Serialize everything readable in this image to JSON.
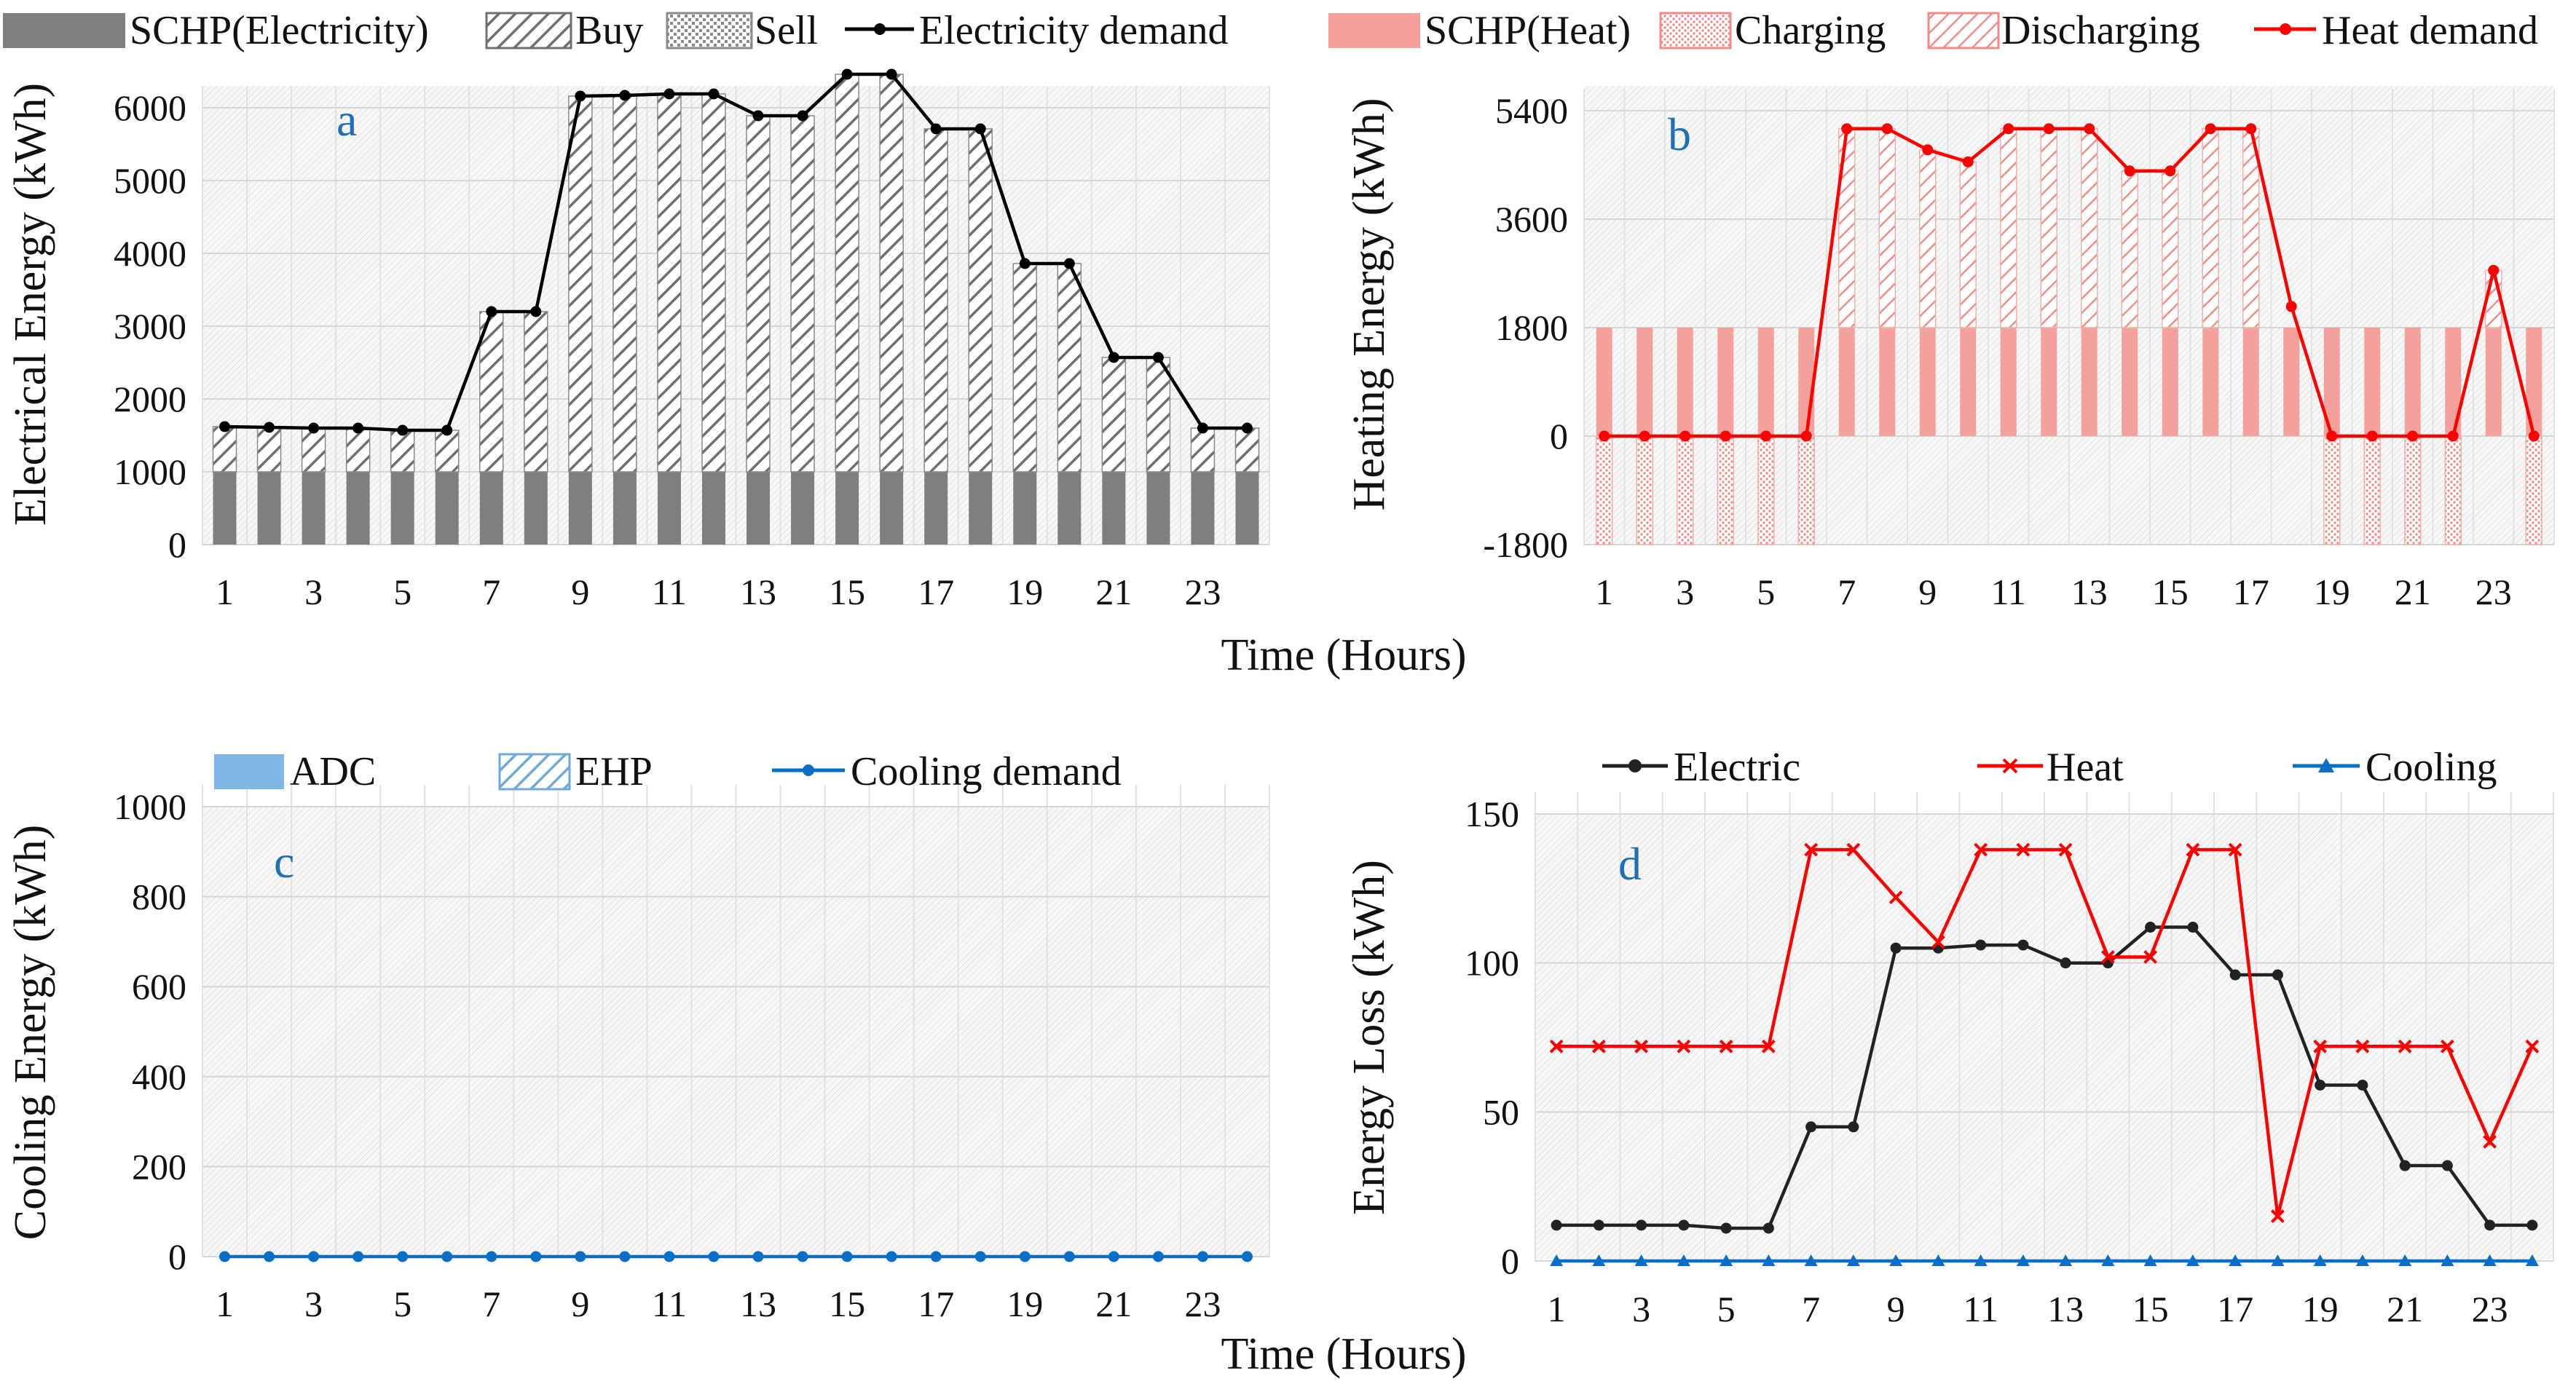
{
  "colors": {
    "schp_electricity": "#7f7f7f",
    "buy_hatch": "#6f6f6f",
    "sell_hatch": "#8a8a8a",
    "electricity_demand": "#000000",
    "schp_heat": "#f4a09c",
    "charge_hatch": "#ef8d88",
    "discharge_hatch": "#ef8d88",
    "heat_demand": "#ff0000",
    "adc": "#7fb6e6",
    "ehp_hatch": "#6fa9dc",
    "cooling_demand": "#0a6ec8",
    "loss_electric": "#222222",
    "loss_heat": "#ff0000",
    "loss_cooling": "#0a6ec8",
    "tag": "#1f6fb5"
  },
  "shared": {
    "xlabel": "Time (Hours)"
  },
  "chart_data": [
    {
      "id": "a",
      "type": "bar",
      "tag": "a",
      "ylabel": "Electrical Energy (kWh)",
      "ylim": [
        0,
        6000
      ],
      "yticks": [
        0,
        1000,
        2000,
        3000,
        4000,
        5000,
        6000
      ],
      "xticks": [
        1,
        3,
        5,
        7,
        9,
        11,
        13,
        15,
        17,
        19,
        21,
        23
      ],
      "legend": [
        "SCHP(Electricity)",
        "Buy",
        "Sell",
        "Electricity demand"
      ],
      "x": [
        1,
        2,
        3,
        4,
        5,
        6,
        7,
        8,
        9,
        10,
        11,
        12,
        13,
        14,
        15,
        16,
        17,
        18,
        19,
        20,
        21,
        22,
        23,
        24
      ],
      "series": [
        {
          "name": "SCHP(Electricity)",
          "kind": "bar",
          "values": [
            1000,
            1000,
            1000,
            1000,
            1000,
            1000,
            1000,
            1000,
            1000,
            1000,
            1000,
            1000,
            1000,
            1000,
            1000,
            1000,
            1000,
            1000,
            1000,
            1000,
            1000,
            1000,
            1000,
            1000
          ]
        },
        {
          "name": "Buy",
          "kind": "bar",
          "values": [
            620,
            610,
            600,
            600,
            570,
            570,
            2200,
            2200,
            5160,
            5170,
            5190,
            5190,
            4890,
            4890,
            5460,
            5460,
            4710,
            4710,
            2860,
            2860,
            1570,
            1570,
            600,
            600
          ]
        },
        {
          "name": "Sell",
          "kind": "bar",
          "values": [
            0,
            0,
            0,
            0,
            0,
            0,
            0,
            0,
            0,
            0,
            0,
            0,
            0,
            0,
            0,
            0,
            0,
            0,
            0,
            0,
            0,
            0,
            0,
            0
          ]
        },
        {
          "name": "Electricity demand",
          "kind": "line",
          "values": [
            1620,
            1610,
            1600,
            1600,
            1570,
            1570,
            3200,
            3200,
            6160,
            6170,
            6190,
            6190,
            5890,
            5890,
            6460,
            6460,
            5710,
            5710,
            3860,
            3860,
            2570,
            2570,
            1600,
            1600
          ]
        }
      ]
    },
    {
      "id": "b",
      "type": "bar",
      "tag": "b",
      "ylabel": "Heating Energy (kWh)",
      "ylim": [
        -1800,
        5400
      ],
      "yticks": [
        -1800,
        0,
        1800,
        3600,
        5400
      ],
      "xticks": [
        1,
        3,
        5,
        7,
        9,
        11,
        13,
        15,
        17,
        19,
        21,
        23
      ],
      "legend": [
        "SCHP(Heat)",
        "Charging",
        "Discharging",
        "Heat demand"
      ],
      "x": [
        1,
        2,
        3,
        4,
        5,
        6,
        7,
        8,
        9,
        10,
        11,
        12,
        13,
        14,
        15,
        16,
        17,
        18,
        19,
        20,
        21,
        22,
        23,
        24
      ],
      "series": [
        {
          "name": "SCHP(Heat)",
          "kind": "bar",
          "values": [
            1800,
            1800,
            1800,
            1800,
            1800,
            1800,
            1800,
            1800,
            1800,
            1800,
            1800,
            1800,
            1800,
            1800,
            1800,
            1800,
            1800,
            1800,
            1800,
            1800,
            1800,
            1800,
            1800,
            1800
          ]
        },
        {
          "name": "Charging",
          "kind": "bar",
          "values": [
            -1800,
            -1800,
            -1800,
            -1800,
            -1800,
            -1800,
            0,
            0,
            0,
            0,
            0,
            0,
            0,
            0,
            0,
            0,
            0,
            0,
            -1800,
            -1800,
            -1800,
            -1800,
            0,
            -1800
          ]
        },
        {
          "name": "Discharging",
          "kind": "bar",
          "values": [
            0,
            0,
            0,
            0,
            0,
            0,
            3300,
            3300,
            2950,
            2750,
            3300,
            3300,
            3300,
            2600,
            2600,
            3300,
            3300,
            0,
            0,
            0,
            0,
            0,
            950,
            0
          ]
        },
        {
          "name": "Heat demand",
          "kind": "line",
          "values": [
            0,
            0,
            0,
            0,
            0,
            0,
            5100,
            5100,
            4750,
            4550,
            5100,
            5100,
            5100,
            4400,
            4400,
            5100,
            5100,
            2150,
            0,
            0,
            0,
            0,
            2750,
            0
          ]
        }
      ]
    },
    {
      "id": "c",
      "type": "bar",
      "tag": "c",
      "ylabel": "Cooling Energy (kWh)",
      "ylim": [
        0,
        1000
      ],
      "yticks": [
        0,
        200,
        400,
        600,
        800,
        1000
      ],
      "xticks": [
        1,
        3,
        5,
        7,
        9,
        11,
        13,
        15,
        17,
        19,
        21,
        23
      ],
      "legend": [
        "ADC",
        "EHP",
        "Cooling demand"
      ],
      "x": [
        1,
        2,
        3,
        4,
        5,
        6,
        7,
        8,
        9,
        10,
        11,
        12,
        13,
        14,
        15,
        16,
        17,
        18,
        19,
        20,
        21,
        22,
        23,
        24
      ],
      "series": [
        {
          "name": "ADC",
          "kind": "bar",
          "values": [
            0,
            0,
            0,
            0,
            0,
            0,
            0,
            0,
            0,
            0,
            0,
            0,
            0,
            0,
            0,
            0,
            0,
            0,
            0,
            0,
            0,
            0,
            0,
            0
          ]
        },
        {
          "name": "EHP",
          "kind": "bar",
          "values": [
            0,
            0,
            0,
            0,
            0,
            0,
            0,
            0,
            0,
            0,
            0,
            0,
            0,
            0,
            0,
            0,
            0,
            0,
            0,
            0,
            0,
            0,
            0,
            0
          ]
        },
        {
          "name": "Cooling demand",
          "kind": "line",
          "values": [
            0,
            0,
            0,
            0,
            0,
            0,
            0,
            0,
            0,
            0,
            0,
            0,
            0,
            0,
            0,
            0,
            0,
            0,
            0,
            0,
            0,
            0,
            0,
            0
          ]
        }
      ]
    },
    {
      "id": "d",
      "type": "line",
      "tag": "d",
      "ylabel": "Energy Loss (kWh)",
      "ylim": [
        0,
        150
      ],
      "yticks": [
        0,
        50,
        100,
        150
      ],
      "xticks": [
        1,
        3,
        5,
        7,
        9,
        11,
        13,
        15,
        17,
        19,
        21,
        23
      ],
      "legend": [
        "Electric",
        "Heat",
        "Cooling"
      ],
      "x": [
        1,
        2,
        3,
        4,
        5,
        6,
        7,
        8,
        9,
        10,
        11,
        12,
        13,
        14,
        15,
        16,
        17,
        18,
        19,
        20,
        21,
        22,
        23,
        24
      ],
      "series": [
        {
          "name": "Electric",
          "kind": "line",
          "values": [
            12,
            12,
            12,
            12,
            11,
            11,
            45,
            45,
            105,
            105,
            106,
            106,
            100,
            100,
            112,
            112,
            96,
            96,
            59,
            59,
            32,
            32,
            12,
            12
          ]
        },
        {
          "name": "Heat",
          "kind": "line",
          "values": [
            72,
            72,
            72,
            72,
            72,
            72,
            138,
            138,
            122,
            107,
            138,
            138,
            138,
            102,
            102,
            138,
            138,
            15,
            72,
            72,
            72,
            72,
            40,
            72
          ]
        },
        {
          "name": "Cooling",
          "kind": "line",
          "values": [
            0,
            0,
            0,
            0,
            0,
            0,
            0,
            0,
            0,
            0,
            0,
            0,
            0,
            0,
            0,
            0,
            0,
            0,
            0,
            0,
            0,
            0,
            0,
            0
          ]
        }
      ]
    }
  ]
}
